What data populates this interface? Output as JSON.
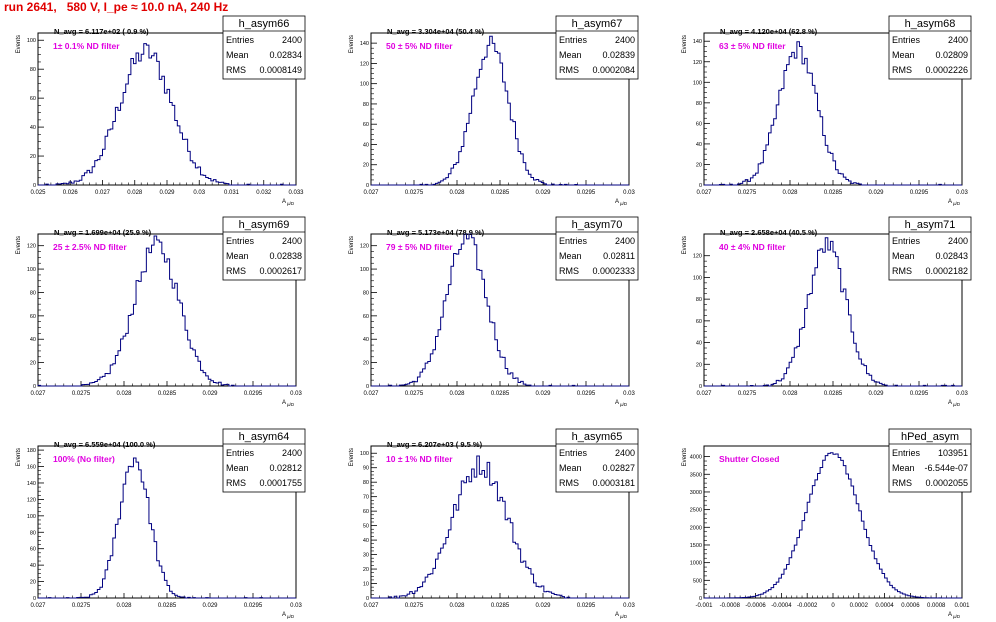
{
  "title": "run 2641,   580 V, I_pe ≈ 10.0 nA, 240 Hz",
  "y_axis_label": "Events",
  "x_axis_label": "A",
  "x_axis_subscript": "µ/D",
  "stats_labels": [
    "Entries",
    "Mean",
    "RMS"
  ],
  "colors": {
    "title": "#e00000",
    "annotation": "#e000e0",
    "histogram": "#000080",
    "frame": "#000000"
  },
  "chart_data": [
    {
      "type": "bar",
      "name": "h_asym66",
      "stats": {
        "entries": "2400",
        "mean": "0.02834",
        "rms": "0.0008149"
      },
      "navg": "N_avg = 6.117e+02 ( 0.9 %)",
      "annotation": "1± 0.1% ND filter",
      "xlim": [
        0.025,
        0.033
      ],
      "x_ticks": [
        "0.025",
        "0.026",
        "0.027",
        "0.028",
        "0.029",
        "0.03",
        "0.031",
        "0.032",
        "0.033"
      ],
      "x_tick_values": [
        0.025,
        0.026,
        0.027,
        0.028,
        0.029,
        0.03,
        0.031,
        0.032,
        0.033
      ],
      "ylim": [
        0,
        105
      ],
      "y_ticks": [
        0,
        20,
        40,
        60,
        80,
        100
      ],
      "mean": 0.02834,
      "sigma": 0.0008149,
      "peak": 92
    },
    {
      "type": "bar",
      "name": "h_asym67",
      "stats": {
        "entries": "2400",
        "mean": "0.02839",
        "rms": "0.0002084"
      },
      "navg": "N_avg = 3.304e+04 (50.4 %)",
      "annotation": "50 ± 5% ND filter",
      "xlim": [
        0.027,
        0.03
      ],
      "x_ticks": [
        "0.027",
        "0.0275",
        "0.028",
        "0.0285",
        "0.029",
        "0.0295",
        "0.03"
      ],
      "x_tick_values": [
        0.027,
        0.0275,
        0.028,
        0.0285,
        0.029,
        0.0295,
        0.03
      ],
      "ylim": [
        0,
        150
      ],
      "y_ticks": [
        0,
        20,
        40,
        60,
        80,
        100,
        120,
        140
      ],
      "mean": 0.02839,
      "sigma": 0.0002084,
      "peak": 138
    },
    {
      "type": "bar",
      "name": "h_asym68",
      "stats": {
        "entries": "2400",
        "mean": "0.02809",
        "rms": "0.0002226"
      },
      "navg": "N_avg = 4.120e+04 (62.8 %)",
      "annotation": "63 ± 5% ND filter",
      "xlim": [
        0.027,
        0.03
      ],
      "x_ticks": [
        "0.027",
        "0.0275",
        "0.028",
        "0.0285",
        "0.029",
        "0.0295",
        "0.03"
      ],
      "x_tick_values": [
        0.027,
        0.0275,
        0.028,
        0.0285,
        0.029,
        0.0295,
        0.03
      ],
      "ylim": [
        0,
        148
      ],
      "y_ticks": [
        0,
        20,
        40,
        60,
        80,
        100,
        120,
        140
      ],
      "mean": 0.02809,
      "sigma": 0.0002226,
      "peak": 132
    },
    {
      "type": "bar",
      "name": "h_asym69",
      "stats": {
        "entries": "2400",
        "mean": "0.02838",
        "rms": "0.0002617"
      },
      "navg": "N_avg = 1.699e+04 (25.9 %)",
      "annotation": "25 ± 2.5% ND filter",
      "xlim": [
        0.027,
        0.03
      ],
      "x_ticks": [
        "0.027",
        "0.0275",
        "0.028",
        "0.0285",
        "0.029",
        "0.0295",
        "0.03"
      ],
      "x_tick_values": [
        0.027,
        0.0275,
        0.028,
        0.0285,
        0.029,
        0.0295,
        0.03
      ],
      "ylim": [
        0,
        130
      ],
      "y_ticks": [
        0,
        20,
        40,
        60,
        80,
        100,
        120
      ],
      "mean": 0.02838,
      "sigma": 0.0002617,
      "peak": 120
    },
    {
      "type": "bar",
      "name": "h_asym70",
      "stats": {
        "entries": "2400",
        "mean": "0.02811",
        "rms": "0.0002333"
      },
      "navg": "N_avg = 5.173e+04 (78.9 %)",
      "annotation": "79 ± 5% ND filter",
      "xlim": [
        0.027,
        0.03
      ],
      "x_ticks": [
        "0.027",
        "0.0275",
        "0.028",
        "0.0285",
        "0.029",
        "0.0295",
        "0.03"
      ],
      "x_tick_values": [
        0.027,
        0.0275,
        0.028,
        0.0285,
        0.029,
        0.0295,
        0.03
      ],
      "ylim": [
        0,
        130
      ],
      "y_ticks": [
        0,
        20,
        40,
        60,
        80,
        100,
        120
      ],
      "mean": 0.02811,
      "sigma": 0.0002333,
      "peak": 125
    },
    {
      "type": "bar",
      "name": "h_asym71",
      "stats": {
        "entries": "2400",
        "mean": "0.02843",
        "rms": "0.0002182"
      },
      "navg": "N_avg = 2.658e+04 (40.5 %)",
      "annotation": "40 ± 4% ND filter",
      "xlim": [
        0.027,
        0.03
      ],
      "x_ticks": [
        "0.027",
        "0.0275",
        "0.028",
        "0.0285",
        "0.029",
        "0.0295",
        "0.03"
      ],
      "x_tick_values": [
        0.027,
        0.0275,
        0.028,
        0.0285,
        0.029,
        0.0295,
        0.03
      ],
      "ylim": [
        0,
        140
      ],
      "y_ticks": [
        0,
        20,
        40,
        60,
        80,
        100,
        120
      ],
      "mean": 0.02843,
      "sigma": 0.0002182,
      "peak": 130
    },
    {
      "type": "bar",
      "name": "h_asym64",
      "stats": {
        "entries": "2400",
        "mean": "0.02812",
        "rms": "0.0001755"
      },
      "navg": "N_avg = 6.559e+04 (100.0 %)",
      "annotation": "100% (No filter)",
      "xlim": [
        0.027,
        0.03
      ],
      "x_ticks": [
        "0.027",
        "0.0275",
        "0.028",
        "0.0285",
        "0.029",
        "0.0295",
        "0.03"
      ],
      "x_tick_values": [
        0.027,
        0.0275,
        0.028,
        0.0285,
        0.029,
        0.0295,
        0.03
      ],
      "ylim": [
        0,
        185
      ],
      "y_ticks": [
        0,
        20,
        40,
        60,
        80,
        100,
        120,
        140,
        160,
        180
      ],
      "mean": 0.02812,
      "sigma": 0.0001755,
      "peak": 170
    },
    {
      "type": "bar",
      "name": "h_asym65",
      "stats": {
        "entries": "2400",
        "mean": "0.02827",
        "rms": "0.0003181"
      },
      "navg": "N_avg = 6.207e+03 ( 9.5 %)",
      "annotation": "10 ± 1% ND filter",
      "xlim": [
        0.027,
        0.03
      ],
      "x_ticks": [
        "0.027",
        "0.0275",
        "0.028",
        "0.0285",
        "0.029",
        "0.0295",
        "0.03"
      ],
      "x_tick_values": [
        0.027,
        0.0275,
        0.028,
        0.0285,
        0.029,
        0.0295,
        0.03
      ],
      "ylim": [
        0,
        105
      ],
      "y_ticks": [
        0,
        10,
        20,
        30,
        40,
        50,
        60,
        70,
        80,
        90,
        100
      ],
      "mean": 0.02827,
      "sigma": 0.0003181,
      "peak": 92
    },
    {
      "type": "bar",
      "name": "hPed_asym",
      "stats": {
        "entries": "103951",
        "mean": "-6.544e-07",
        "rms": "0.0002055"
      },
      "navg": "",
      "annotation": "Shutter Closed",
      "xlim": [
        -0.001,
        0.001
      ],
      "x_ticks": [
        "-0.001",
        "-0.0008",
        "-0.0006",
        "-0.0004",
        "-0.0002",
        "0",
        "0.0002",
        "0.0004",
        "0.0006",
        "0.0008",
        "0.001"
      ],
      "x_tick_values": [
        -0.001,
        -0.0008,
        -0.0006,
        -0.0004,
        -0.0002,
        0,
        0.0002,
        0.0004,
        0.0006,
        0.0008,
        0.001
      ],
      "ylim": [
        0,
        4300
      ],
      "y_ticks": [
        0,
        500,
        1000,
        1500,
        2000,
        2500,
        3000,
        3500,
        4000
      ],
      "mean": 0.0,
      "sigma": 0.0002055,
      "peak": 4100
    }
  ]
}
